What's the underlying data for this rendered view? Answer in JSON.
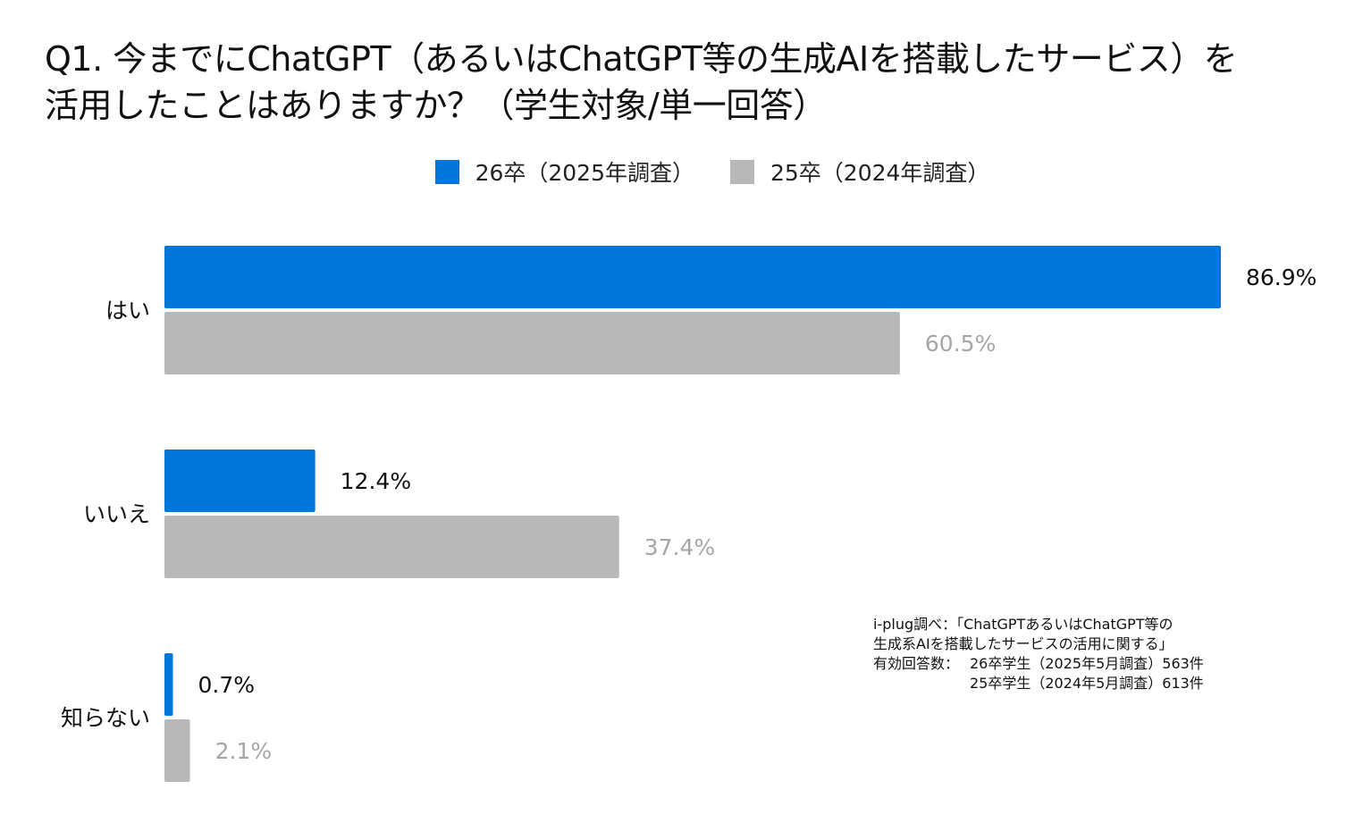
{
  "title_line1": "Q1. 今までにChatGPT（あるいはChatGPT等の生成AIを搭載したサービス）を",
  "title_line2": "活用したことはありますか？（学生対象/単一回答）",
  "colors": {
    "series1": "#0277DA",
    "series2": "#B8B8B8",
    "label1": "#111111",
    "label2": "#A6A6A6"
  },
  "chart_data": {
    "type": "bar",
    "orientation": "horizontal",
    "categories": [
      "はい",
      "いいえ",
      "知らない"
    ],
    "series": [
      {
        "name": "26卒（2025年調査）",
        "values": [
          86.9,
          12.4,
          0.7
        ]
      },
      {
        "name": "25卒（2024年調査）",
        "values": [
          60.5,
          37.4,
          2.1
        ]
      }
    ],
    "value_labels": [
      [
        "86.9%",
        "12.4%",
        "0.7%"
      ],
      [
        "60.5%",
        "37.4%",
        "2.1%"
      ]
    ],
    "unit": "%",
    "xlim": [
      0,
      86.9
    ],
    "grid": false,
    "legend_position": "top"
  },
  "footnote": {
    "line1": "i-plug調べ：「ChatGPTあるいはChatGPT等の",
    "line2": "生成系AIを搭載したサービスの活用に関する」",
    "line3_label": "有効回答数：",
    "line3_value": "26卒学生（2025年5月調査）563件",
    "line4_value": "25卒学生（2024年5月調査）613件"
  }
}
